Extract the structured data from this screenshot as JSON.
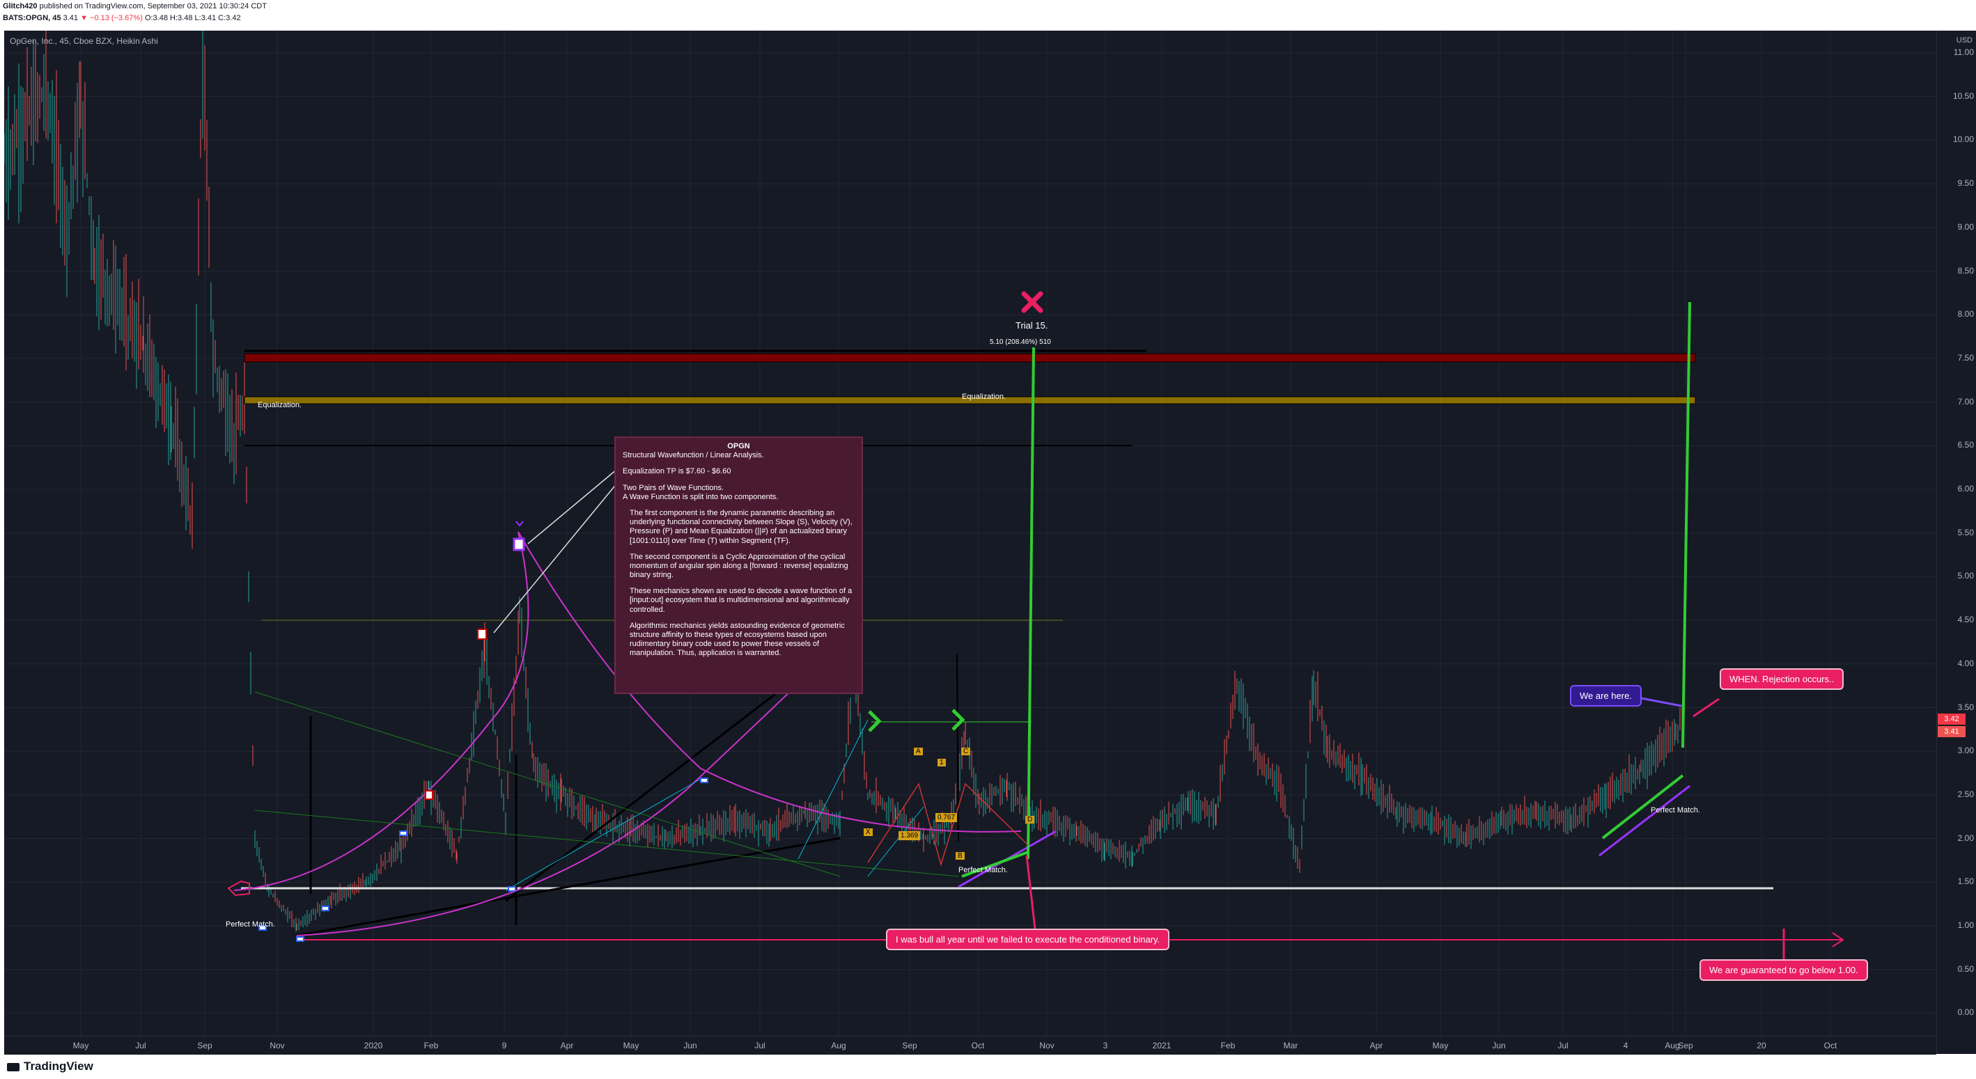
{
  "header": {
    "line1_user": "Glitch420",
    "line1_rest": "published on TradingView.com, September 03, 2021 10:30:24 CDT",
    "line2_symbol": "BATS:OPGN, 45",
    "line2_price": "3.41",
    "line2_change": "−0.13 (−3.67%)",
    "line2_o": "O:3.48",
    "line2_h": "H:3.48",
    "line2_l": "L:3.41",
    "line2_c": "C:3.42"
  },
  "chart": {
    "legend": "OpGen, Inc., 45, Cboe BZX, Heikin Ashi",
    "currency": "USD",
    "last_price_tag": "3.42",
    "close_price_tag": "3.41"
  },
  "annotations": {
    "equalization_left": "Equalization.",
    "equalization_right": "Equalization.",
    "trial": "Trial 15.",
    "measure": "5.10 (208.46%) 510",
    "perfect_match_1": "Perfect Match.",
    "perfect_match_2": "Perfect Match.",
    "perfect_match_3": "Perfect Match.",
    "fib_1": "1.369",
    "fib_2": "0.767",
    "point_a": "A",
    "point_b": "B",
    "point_c": "C",
    "point_d": "D",
    "point_x": "X",
    "point_1": "1"
  },
  "callouts": {
    "bull": "I was bull all year until we failed to execute the conditioned binary.",
    "below": "We are guaranteed to go below 1.00.",
    "here": "We are here.",
    "rejection": "WHEN. Rejection occurs.."
  },
  "note": {
    "title": "OPGN",
    "subtitle": "Structural Wavefunction / Linear Analysis.",
    "tp": "Equalization TP is $7.60 - $6.60",
    "p1": "Two Pairs of Wave Functions.\n A Wave Function is split into two components.",
    "p2": "The first component  is the  dynamic parametric describing an underlying functional connectivity  between Slope (S), Velocity (V), Pressure (P) and Mean Equalization (||#) of an actualized  binary [1001:0110] over Time (T) within Segment (TF).",
    "p3": "The second component is a Cyclic Approximation of the cyclical momentum of angular spin along a [forward : reverse] equalizing binary string.",
    "p4": "These mechanics shown are used to decode a wave function of a [input:out] ecosystem that is multidimensional and algorithmically controlled.",
    "p5": "Algorithmic mechanics yields astounding evidence of geometric structure affinity to these types of ecosystems based upon rudimentary binary code used to power these vessels of manipulation. Thus, application is warranted."
  },
  "y_axis": [
    "11.00",
    "10.50",
    "10.00",
    "9.50",
    "9.00",
    "8.50",
    "8.00",
    "7.50",
    "7.00",
    "6.50",
    "6.00",
    "5.50",
    "5.00",
    "4.50",
    "4.00",
    "3.50",
    "3.00",
    "2.50",
    "2.00",
    "1.50",
    "1.00",
    "0.50",
    "0.00"
  ],
  "x_axis": [
    "May",
    "Jul",
    "Sep",
    "Nov",
    "2020",
    "Feb",
    "9",
    "Apr",
    "May",
    "Jun",
    "Jul",
    "Aug",
    "Sep",
    "Oct",
    "Nov",
    "3",
    "2021",
    "Feb",
    "Mar",
    "Apr",
    "May",
    "Jun",
    "Jul",
    "4",
    "Aug",
    "Sep",
    "20",
    "Oct"
  ],
  "events": [
    "E",
    "E",
    "E",
    "S",
    "E",
    "E",
    "E",
    "E",
    "E",
    "E",
    "E"
  ],
  "footer": "TradingView",
  "colors": {
    "background": "#161a25",
    "up": "#26a69a",
    "down": "#ef5350",
    "callout": "#e91e63",
    "equalization_band": "#8b6f00",
    "resistance_band": "#7a0000",
    "pump": "#33cc33"
  }
}
